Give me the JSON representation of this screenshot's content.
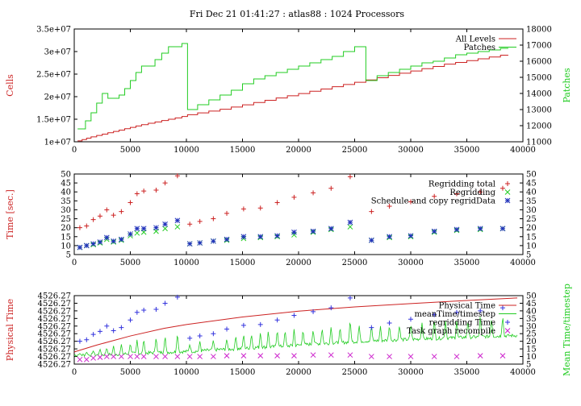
{
  "title": "Fri Dec 21 01:41:27 : atlas88 : 1024 Processors",
  "colors": {
    "red": "#cc2222",
    "green": "#22cc22",
    "blue": "#2233bb",
    "magenta": "#cc22cc",
    "navy": "#0a1f7a",
    "bluePlus": "#3333dd"
  },
  "chart_data": [
    {
      "type": "line",
      "ylabel": "Cells",
      "y2label": "Patches",
      "xlim": [
        0,
        40000
      ],
      "ylim": [
        10000000,
        35000000
      ],
      "y2lim": [
        11000,
        18000
      ],
      "xticks": [
        "0",
        "5000",
        "10000",
        "15000",
        "20000",
        "25000",
        "30000",
        "35000",
        "40000"
      ],
      "yticks": [
        "1e+07",
        "1.5e+07",
        "2e+07",
        "2.5e+07",
        "3e+07",
        "3.5e+07"
      ],
      "y2ticks": [
        "11000",
        "12000",
        "13000",
        "14000",
        "15000",
        "16000",
        "17000",
        "18000"
      ],
      "series": [
        {
          "name": "All Levels",
          "axis": "y",
          "color": "red",
          "x": [
            300,
            700,
            1100,
            1500,
            2000,
            2500,
            3000,
            3500,
            4000,
            4500,
            5000,
            5500,
            6000,
            6600,
            7200,
            7800,
            8400,
            9000,
            9600,
            10100,
            11000,
            12000,
            13000,
            14000,
            15000,
            16000,
            17000,
            18000,
            19000,
            20000,
            21000,
            22000,
            23000,
            24000,
            25000,
            26000,
            27000,
            28000,
            29000,
            30000,
            31000,
            32000,
            33000,
            34000,
            35000,
            36000,
            37000,
            38000
          ],
          "y": [
            10200000,
            10500000,
            10800000,
            11100000,
            11400000,
            11700000,
            12000000,
            12300000,
            12600000,
            12900000,
            13200000,
            13500000,
            13800000,
            14100000,
            14400000,
            14700000,
            15000000,
            15300000,
            15600000,
            16000000,
            16400000,
            16800000,
            17200000,
            17700000,
            18200000,
            18700000,
            19200000,
            19700000,
            20200000,
            20700000,
            21200000,
            21700000,
            22200000,
            22700000,
            23200000,
            23700000,
            24200000,
            24700000,
            25200000,
            25700000,
            26200000,
            26700000,
            27200000,
            27600000,
            28000000,
            28400000,
            28800000,
            29200000
          ]
        },
        {
          "name": "Patches",
          "axis": "y2",
          "color": "green",
          "x": [
            300,
            1000,
            1500,
            2000,
            2500,
            3000,
            3500,
            4000,
            4500,
            5000,
            5500,
            6000,
            6600,
            7200,
            7800,
            8400,
            9000,
            9600,
            10100,
            11000,
            12000,
            13000,
            14000,
            15000,
            16000,
            17000,
            18000,
            19000,
            20000,
            21000,
            22000,
            23000,
            24000,
            25000,
            26000,
            27000,
            28000,
            29000,
            30000,
            31000,
            32000,
            33000,
            34000,
            35000,
            36000,
            37000,
            38000
          ],
          "y": [
            11800,
            12300,
            12800,
            13400,
            14000,
            13700,
            13700,
            13900,
            14300,
            14800,
            15300,
            15700,
            15700,
            16100,
            16500,
            16900,
            16900,
            17100,
            13000,
            13300,
            13600,
            13900,
            14200,
            14600,
            14900,
            15100,
            15300,
            15500,
            15700,
            15900,
            16100,
            16300,
            16600,
            16900,
            14800,
            15100,
            15300,
            15500,
            15700,
            15900,
            16000,
            16200,
            16400,
            16500,
            16600,
            16700,
            16800
          ]
        }
      ],
      "legend": "top-right"
    },
    {
      "type": "scatter",
      "ylabel": "Time [sec.]",
      "xlim": [
        0,
        40000
      ],
      "ylim": [
        5,
        50
      ],
      "y2lim": [
        5,
        50
      ],
      "xticks": [
        "0",
        "5000",
        "10000",
        "15000",
        "20000",
        "25000",
        "30000",
        "35000",
        "40000"
      ],
      "yticks": [
        "5",
        "10",
        "15",
        "20",
        "25",
        "30",
        "35",
        "40",
        "45",
        "50"
      ],
      "y2ticks": [
        "5",
        "10",
        "15",
        "20",
        "25",
        "30",
        "35",
        "40",
        "45",
        "50"
      ],
      "series": [
        {
          "name": "Regridding total",
          "marker": "plus",
          "color": "red",
          "x": [
            500,
            1100,
            1700,
            2300,
            2900,
            3500,
            4200,
            5000,
            5600,
            6200,
            7300,
            8100,
            9200,
            10300,
            11200,
            12400,
            13600,
            15100,
            16600,
            18100,
            19600,
            21300,
            22900,
            24600,
            26500,
            28100,
            30000,
            32100,
            34100,
            36200,
            38200
          ],
          "y": [
            20,
            21,
            24.5,
            26.5,
            30,
            27,
            29,
            34,
            39,
            40.5,
            41,
            45,
            49,
            22,
            23.5,
            25,
            28,
            30.5,
            31,
            34,
            37,
            39.5,
            42,
            48.5,
            29,
            32,
            34.5,
            37.5,
            39,
            40,
            42
          ]
        },
        {
          "name": "Regridding",
          "marker": "x",
          "color": "green",
          "x": [
            500,
            1100,
            1700,
            2300,
            2900,
            3500,
            4200,
            5000,
            5600,
            6200,
            7300,
            8100,
            9200,
            10300,
            11200,
            12400,
            13600,
            15100,
            16600,
            18100,
            19600,
            21300,
            22900,
            24600,
            26500,
            28100,
            30000,
            32100,
            34100,
            36200,
            38200
          ],
          "y": [
            9,
            10,
            10.5,
            11.5,
            13.5,
            12,
            13,
            15.5,
            17,
            17.5,
            18,
            19.5,
            20.5,
            11,
            11.5,
            12.5,
            13,
            14,
            14.5,
            15,
            16,
            17.5,
            19,
            20.5,
            13,
            14.5,
            15,
            17.5,
            18.5,
            19,
            19.5
          ]
        },
        {
          "name": "Schedule and copy regridData",
          "marker": "star",
          "color": "blue",
          "x": [
            500,
            1100,
            1700,
            2300,
            2900,
            3500,
            4200,
            5000,
            5600,
            6200,
            7300,
            8100,
            9200,
            10300,
            11200,
            12400,
            13600,
            15100,
            16600,
            18100,
            19600,
            21300,
            22900,
            24600,
            26500,
            28100,
            30000,
            32100,
            34100,
            36200,
            38200
          ],
          "y": [
            9,
            10,
            11,
            12,
            14.5,
            12.5,
            13.5,
            16.5,
            19.5,
            19.5,
            20,
            22,
            24,
            11,
            11.5,
            12.5,
            13.5,
            15,
            15,
            15.5,
            17.5,
            18,
            19.5,
            23,
            13,
            15,
            15.5,
            18,
            19,
            19.5,
            19.5
          ]
        }
      ],
      "legend": "top-right"
    },
    {
      "type": "line",
      "ylabel": "Physical Time",
      "y2label": "Mean Time/timestep",
      "xlim": [
        0,
        40000
      ],
      "y2lim": [
        5,
        50
      ],
      "xticks": [
        "0",
        "5000",
        "10000",
        "15000",
        "20000",
        "25000",
        "30000",
        "35000",
        "40000"
      ],
      "yticks": [
        "4526.27",
        "4526.27",
        "4526.27",
        "4526.27",
        "4526.27",
        "4526.27",
        "4526.27",
        "4526.27",
        "4526.27",
        "4526.27"
      ],
      "y2ticks": [
        "5",
        "10",
        "15",
        "20",
        "25",
        "30",
        "35",
        "40",
        "45",
        "50"
      ],
      "series": [
        {
          "name": "Physical Time",
          "color": "red",
          "x": [
            0,
            2000,
            5000,
            8000,
            10000,
            15000,
            20000,
            25000,
            30000,
            35000,
            39500
          ],
          "y": [
            13,
            17.5,
            23.5,
            28.5,
            31,
            36,
            39.8,
            42.6,
            44.8,
            46.8,
            48.5
          ]
        },
        {
          "name": "meanTime/timestep",
          "color": "green",
          "baseline": [
            11,
            11,
            11.5,
            12,
            12.5,
            13,
            13.5,
            14.5,
            15,
            16,
            16.5,
            17.5,
            18.5,
            19,
            20,
            20.5,
            21,
            21.5,
            22,
            22.5,
            23,
            23.5,
            24
          ],
          "peak_x": [
            500,
            1100,
            1700,
            2300,
            2900,
            3500,
            4200,
            5000,
            5600,
            6200,
            7300,
            8100,
            9200,
            10300,
            11200,
            12400,
            13600,
            14400,
            15100,
            15800,
            16600,
            17300,
            18100,
            18800,
            19600,
            20400,
            21300,
            22100,
            22900,
            23700,
            24600,
            25400,
            26500,
            27300,
            28100,
            29000,
            30000,
            31000,
            32100,
            33100,
            34100,
            35100,
            36200,
            37200,
            38200
          ],
          "peak_y": [
            12,
            13,
            14,
            15,
            16,
            17,
            18,
            19,
            21,
            22,
            23,
            24,
            26,
            18,
            20,
            21,
            22,
            24,
            25,
            25,
            26,
            27,
            28,
            28,
            28,
            28,
            28,
            29,
            30,
            30,
            35,
            31,
            31,
            30,
            31,
            31,
            32,
            33,
            35,
            34,
            34,
            34,
            37,
            36,
            37
          ]
        },
        {
          "name": "regridding Time",
          "marker": "plus",
          "color": "bluePlus",
          "x": [
            500,
            1100,
            1700,
            2300,
            2900,
            3500,
            4200,
            5000,
            5600,
            6200,
            7300,
            8100,
            9200,
            10300,
            11200,
            12400,
            13600,
            15100,
            16600,
            18100,
            19600,
            21300,
            22900,
            24600,
            26500,
            28100,
            30000,
            32100,
            34100,
            36200,
            38200
          ],
          "y": [
            20,
            21,
            24.5,
            26.5,
            30,
            27,
            29,
            34,
            39,
            40.5,
            41,
            45,
            49,
            22,
            23.5,
            25,
            28,
            30.5,
            31,
            34,
            37,
            39.5,
            42,
            48.5,
            29,
            32,
            34.5,
            37.5,
            39,
            40,
            42
          ]
        },
        {
          "name": "Task graph recompile",
          "marker": "x",
          "color": "magenta",
          "x": [
            500,
            1100,
            1700,
            2300,
            2900,
            3500,
            4200,
            5000,
            5600,
            6200,
            7300,
            8100,
            9200,
            10300,
            11200,
            12400,
            13600,
            15100,
            16600,
            18100,
            19600,
            21300,
            22900,
            24600,
            26500,
            28100,
            30000,
            32100,
            34100,
            36200,
            38200
          ],
          "y": [
            8,
            8,
            9,
            9.5,
            10,
            10,
            10,
            10,
            10,
            10,
            10,
            10,
            10,
            10,
            10,
            10,
            10.5,
            10.5,
            10.5,
            10.5,
            10.5,
            11,
            11,
            11,
            10,
            10,
            10,
            10,
            10,
            10.5,
            10.5
          ]
        }
      ],
      "legend": "top-right"
    }
  ]
}
